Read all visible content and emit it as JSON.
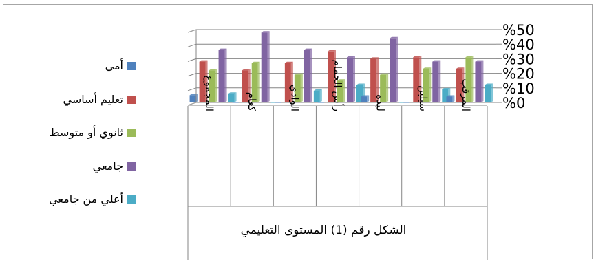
{
  "chart_data": {
    "type": "bar",
    "title": "الشكل رقم (1) المستوى التعليمي",
    "categories": [
      "المجموع",
      "كعام",
      "الوادي",
      "رأس الحمام",
      "لبده",
      "سيلين",
      "المرقب"
    ],
    "series": [
      {
        "name": "أمي",
        "color": "#4f81bd",
        "values": [
          5,
          0,
          0,
          0,
          4,
          0,
          4
        ]
      },
      {
        "name": "تعليم أساسي",
        "color": "#c0504d",
        "values": [
          28,
          22,
          27,
          35,
          30,
          31,
          23
        ]
      },
      {
        "name": "ثانوي أو متوسط",
        "color": "#9bbb59",
        "values": [
          22,
          27,
          19,
          15,
          19,
          23,
          31
        ]
      },
      {
        "name": "جامعي",
        "color": "#8064a2",
        "values": [
          36,
          48,
          36,
          31,
          44,
          28,
          28
        ]
      },
      {
        "name": "أعلي من جامعي",
        "color": "#4bacc6",
        "values": [
          6,
          0,
          8,
          12,
          0,
          9,
          12
        ]
      }
    ],
    "y_ticks": [
      "%0",
      "%10",
      "%20",
      "%30",
      "%40",
      "%50"
    ],
    "ylim": [
      0,
      50
    ],
    "legend_position": "left",
    "grid": true
  }
}
